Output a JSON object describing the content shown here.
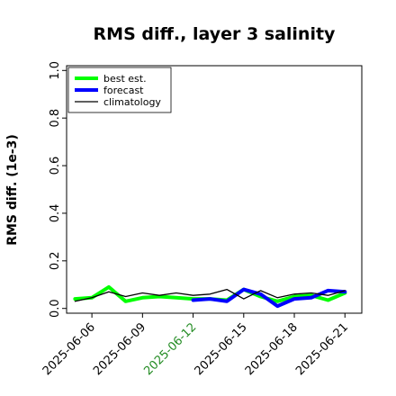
{
  "chart_data": {
    "type": "line",
    "title": "RMS diff., layer 3 salinity",
    "ylabel": "RMS diff. (1e-3)",
    "xlabel": "",
    "ylim": [
      -0.02,
      1.02
    ],
    "xlim": [
      "2025-06-04T12:00",
      "2025-06-22"
    ],
    "yticks": [
      "0.0",
      "0.2",
      "0.4",
      "0.6",
      "0.8",
      "1.0"
    ],
    "ytick_values": [
      0.0,
      0.2,
      0.4,
      0.6,
      0.8,
      1.0
    ],
    "xticks": [
      {
        "date": "2025-06-06",
        "label": "2025-06-06",
        "color": "#000000"
      },
      {
        "date": "2025-06-09",
        "label": "2025-06-09",
        "color": "#000000"
      },
      {
        "date": "2025-06-12",
        "label": "2025-06-12",
        "color": "#228B22"
      },
      {
        "date": "2025-06-15",
        "label": "2025-06-15",
        "color": "#000000"
      },
      {
        "date": "2025-06-18",
        "label": "2025-06-18",
        "color": "#000000"
      },
      {
        "date": "2025-06-21",
        "label": "2025-06-21",
        "color": "#000000"
      }
    ],
    "legend_position": "top-left",
    "grid": false,
    "series": [
      {
        "name": "best est.",
        "color": "#00FF00",
        "width": 4,
        "x": [
          "2025-06-05",
          "2025-06-06",
          "2025-06-07",
          "2025-06-08",
          "2025-06-09",
          "2025-06-10",
          "2025-06-11",
          "2025-06-12",
          "2025-06-13",
          "2025-06-14",
          "2025-06-15",
          "2025-06-16",
          "2025-06-17",
          "2025-06-18",
          "2025-06-19",
          "2025-06-20",
          "2025-06-21"
        ],
        "y": [
          0.04,
          0.045,
          0.09,
          0.03,
          0.045,
          0.05,
          0.045,
          0.04,
          0.04,
          0.035,
          0.08,
          0.05,
          0.03,
          0.05,
          0.055,
          0.035,
          0.065
        ]
      },
      {
        "name": "forecast",
        "color": "#0000FF",
        "width": 4,
        "x": [
          "2025-06-12",
          "2025-06-13",
          "2025-06-14",
          "2025-06-15",
          "2025-06-16",
          "2025-06-17",
          "2025-06-18",
          "2025-06-19",
          "2025-06-20",
          "2025-06-21"
        ],
        "y": [
          0.035,
          0.04,
          0.03,
          0.08,
          0.06,
          0.01,
          0.04,
          0.045,
          0.075,
          0.07
        ]
      },
      {
        "name": "climatology",
        "color": "#000000",
        "width": 1.3,
        "x": [
          "2025-06-05",
          "2025-06-06",
          "2025-06-07",
          "2025-06-08",
          "2025-06-09",
          "2025-06-10",
          "2025-06-11",
          "2025-06-12",
          "2025-06-13",
          "2025-06-14",
          "2025-06-15",
          "2025-06-16",
          "2025-06-17",
          "2025-06-18",
          "2025-06-19",
          "2025-06-20",
          "2025-06-21"
        ],
        "y": [
          0.03,
          0.045,
          0.07,
          0.05,
          0.065,
          0.055,
          0.065,
          0.055,
          0.06,
          0.08,
          0.04,
          0.075,
          0.045,
          0.06,
          0.065,
          0.055,
          0.075
        ]
      }
    ]
  }
}
